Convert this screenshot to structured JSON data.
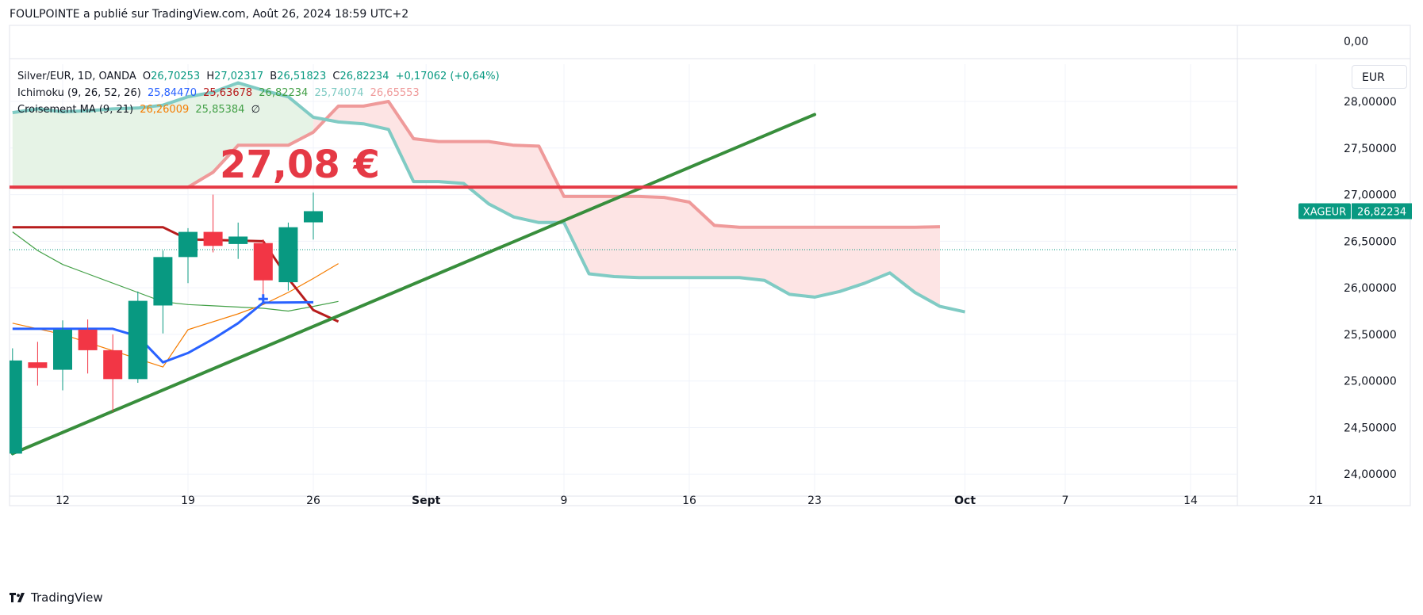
{
  "header": {
    "text": "FOULPOINTE a publié sur TradingView.com, Août 26, 2024 18:59 UTC+2"
  },
  "footer": {
    "brand": "TradingView"
  },
  "legend": {
    "symbol": "Silver/EUR, 1D, OANDA",
    "o_label": "O",
    "o_value": "26,70253",
    "h_label": "H",
    "h_value": "27,02317",
    "b_label": "B",
    "b_value": "26,51823",
    "c_label": "C",
    "c_value": "26,82234",
    "change": "+0,17062 (+0,64%)",
    "ichimoku_label": "Ichimoku (9, 26, 52, 26)",
    "ichimoku_values": [
      "25,84470",
      "25,63678",
      "26,82234",
      "25,74074",
      "26,65553"
    ],
    "ma_label": "Croisement MA (9, 21)",
    "ma_values": [
      "26,26009",
      "25,85384"
    ],
    "ma_extra": "∅"
  },
  "currency_button": "EUR",
  "colors": {
    "up": "#089981",
    "down": "#f23645",
    "tenkan": "#2962ff",
    "kijun": "#b71c1c",
    "span_a": "#ef9a9a",
    "span_b": "#80cbc4",
    "ma_fast": "#f57c00",
    "ma_slow": "#43a047",
    "trendline": "#388e3c",
    "level": "#e53945",
    "cloud_green": "#e6f3e6",
    "cloud_red": "#fde4e4"
  },
  "chart_data": {
    "type": "candlestick",
    "symbol": "XAGEUR",
    "last_price": 26.82234,
    "last_price_label": "26,82234",
    "price_tag_label": "XAGEUR",
    "y_axis": {
      "range": [
        23.9,
        28.4
      ],
      "ticks": [
        0,
        28.0,
        27.5,
        27.0,
        26.5,
        26.0,
        25.5,
        25.0,
        24.5,
        24.0
      ],
      "tick_labels": [
        "0,00",
        "28,00000",
        "27,50000",
        "27,00000",
        "26,50000",
        "26,00000",
        "25,50000",
        "25,00000",
        "24,50000",
        "24,00000"
      ]
    },
    "x_axis": {
      "ticks": [
        {
          "label": "12",
          "date": "2024-08-12"
        },
        {
          "label": "19",
          "date": "2024-08-19"
        },
        {
          "label": "26",
          "date": "2024-08-26"
        },
        {
          "label": "Sept",
          "date": "2024-09-01"
        },
        {
          "label": "9",
          "date": "2024-09-09"
        },
        {
          "label": "16",
          "date": "2024-09-16"
        },
        {
          "label": "23",
          "date": "2024-09-23"
        },
        {
          "label": "Oct",
          "date": "2024-10-01"
        },
        {
          "label": "7",
          "date": "2024-10-07"
        },
        {
          "label": "14",
          "date": "2024-10-14"
        },
        {
          "label": "21",
          "date": "2024-10-21"
        }
      ]
    },
    "candles": [
      {
        "date": "2024-08-08",
        "o": 24.22,
        "h": 25.35,
        "l": 24.2,
        "c": 25.22
      },
      {
        "date": "2024-08-09",
        "o": 25.2,
        "h": 25.42,
        "l": 24.95,
        "c": 25.14
      },
      {
        "date": "2024-08-12",
        "o": 25.12,
        "h": 25.65,
        "l": 24.9,
        "c": 25.55
      },
      {
        "date": "2024-08-13",
        "o": 25.55,
        "h": 25.66,
        "l": 25.08,
        "c": 25.33
      },
      {
        "date": "2024-08-14",
        "o": 25.33,
        "h": 25.5,
        "l": 24.67,
        "c": 25.02
      },
      {
        "date": "2024-08-15",
        "o": 25.02,
        "h": 25.96,
        "l": 24.98,
        "c": 25.86
      },
      {
        "date": "2024-08-16",
        "o": 25.81,
        "h": 26.4,
        "l": 25.51,
        "c": 26.33
      },
      {
        "date": "2024-08-19",
        "o": 26.33,
        "h": 26.64,
        "l": 26.05,
        "c": 26.6
      },
      {
        "date": "2024-08-20",
        "o": 26.6,
        "h": 27.0,
        "l": 26.38,
        "c": 26.45
      },
      {
        "date": "2024-08-21",
        "o": 26.47,
        "h": 26.7,
        "l": 26.31,
        "c": 26.55
      },
      {
        "date": "2024-08-22",
        "o": 26.48,
        "h": 26.52,
        "l": 25.9,
        "c": 26.08
      },
      {
        "date": "2024-08-23",
        "o": 26.06,
        "h": 26.7,
        "l": 25.97,
        "c": 26.65
      },
      {
        "date": "2024-08-26",
        "o": 26.70253,
        "h": 27.02317,
        "l": 26.51823,
        "c": 26.82234
      }
    ],
    "annotation": {
      "text": "27,08 €",
      "level": 27.08
    },
    "trendline": {
      "from": {
        "date": "2024-08-08",
        "value": 24.22
      },
      "to": {
        "date": "2024-09-23",
        "value": 27.86
      }
    },
    "series": [
      {
        "name": "Tenkan",
        "points": [
          [
            "2024-08-08",
            25.56
          ],
          [
            "2024-08-14",
            25.56
          ],
          [
            "2024-08-15",
            25.48
          ],
          [
            "2024-08-16",
            25.2
          ],
          [
            "2024-08-19",
            25.3
          ],
          [
            "2024-08-20",
            25.45
          ],
          [
            "2024-08-21",
            25.62
          ],
          [
            "2024-08-22",
            25.84
          ],
          [
            "2024-08-26",
            25.8447
          ]
        ]
      },
      {
        "name": "Kijun",
        "points": [
          [
            "2024-08-08",
            26.65
          ],
          [
            "2024-08-16",
            26.65
          ],
          [
            "2024-08-19",
            26.52
          ],
          [
            "2024-08-22",
            26.5
          ],
          [
            "2024-08-23",
            26.1
          ],
          [
            "2024-08-26",
            25.76
          ],
          [
            "2024-08-27",
            25.63678
          ]
        ]
      },
      {
        "name": "MA 9",
        "points": [
          [
            "2024-08-08",
            25.62
          ],
          [
            "2024-08-12",
            25.5
          ],
          [
            "2024-08-16",
            25.15
          ],
          [
            "2024-08-19",
            25.55
          ],
          [
            "2024-08-21",
            25.72
          ],
          [
            "2024-08-22",
            25.82
          ],
          [
            "2024-08-23",
            25.95
          ],
          [
            "2024-08-26",
            26.1
          ],
          [
            "2024-08-27",
            26.26009
          ]
        ]
      },
      {
        "name": "MA 21",
        "points": [
          [
            "2024-08-08",
            26.6
          ],
          [
            "2024-08-09",
            26.4
          ],
          [
            "2024-08-12",
            26.25
          ],
          [
            "2024-08-13",
            26.15
          ],
          [
            "2024-08-15",
            25.95
          ],
          [
            "2024-08-16",
            25.85
          ],
          [
            "2024-08-19",
            25.82
          ],
          [
            "2024-08-22",
            25.78
          ],
          [
            "2024-08-23",
            25.75
          ],
          [
            "2024-08-26",
            25.8
          ],
          [
            "2024-08-27",
            25.85384
          ]
        ]
      },
      {
        "name": "Senkou Span A",
        "points": [
          [
            "2024-08-08",
            27.08
          ],
          [
            "2024-08-19",
            27.08
          ],
          [
            "2024-08-20",
            27.24
          ],
          [
            "2024-08-21",
            27.53
          ],
          [
            "2024-08-22",
            27.53
          ],
          [
            "2024-08-23",
            27.53
          ],
          [
            "2024-08-26",
            27.67
          ],
          [
            "2024-08-27",
            27.95
          ],
          [
            "2024-08-28",
            27.95
          ],
          [
            "2024-08-29",
            28.0
          ],
          [
            "2024-08-30",
            27.6
          ],
          [
            "2024-09-02",
            27.57
          ],
          [
            "2024-09-03",
            27.57
          ],
          [
            "2024-09-04",
            27.57
          ],
          [
            "2024-09-05",
            27.53
          ],
          [
            "2024-09-06",
            27.52
          ],
          [
            "2024-09-09",
            26.98
          ],
          [
            "2024-09-10",
            26.98
          ],
          [
            "2024-09-11",
            26.98
          ],
          [
            "2024-09-12",
            26.98
          ],
          [
            "2024-09-13",
            26.97
          ],
          [
            "2024-09-16",
            26.92
          ],
          [
            "2024-09-17",
            26.67
          ],
          [
            "2024-09-18",
            26.65
          ],
          [
            "2024-09-19",
            26.65
          ],
          [
            "2024-09-20",
            26.65
          ],
          [
            "2024-09-23",
            26.65
          ],
          [
            "2024-09-24",
            26.65
          ],
          [
            "2024-09-25",
            26.65
          ],
          [
            "2024-09-26",
            26.65
          ],
          [
            "2024-09-27",
            26.65
          ],
          [
            "2024-09-30",
            26.65553
          ]
        ]
      },
      {
        "name": "Senkou Span B",
        "points": [
          [
            "2024-08-08",
            27.88
          ],
          [
            "2024-08-09",
            27.92
          ],
          [
            "2024-08-12",
            27.89
          ],
          [
            "2024-08-13",
            27.9
          ],
          [
            "2024-08-14",
            27.92
          ],
          [
            "2024-08-15",
            27.93
          ],
          [
            "2024-08-16",
            27.96
          ],
          [
            "2024-08-19",
            28.05
          ],
          [
            "2024-08-20",
            28.1
          ],
          [
            "2024-08-21",
            28.2
          ],
          [
            "2024-08-22",
            28.12
          ],
          [
            "2024-08-23",
            28.05
          ],
          [
            "2024-08-26",
            27.83
          ],
          [
            "2024-08-27",
            27.78
          ],
          [
            "2024-08-28",
            27.76
          ],
          [
            "2024-08-29",
            27.7
          ],
          [
            "2024-08-30",
            27.14
          ],
          [
            "2024-09-02",
            27.14
          ],
          [
            "2024-09-03",
            27.12
          ],
          [
            "2024-09-04",
            26.9
          ],
          [
            "2024-09-05",
            26.76
          ],
          [
            "2024-09-06",
            26.7
          ],
          [
            "2024-09-09",
            26.7
          ],
          [
            "2024-09-10",
            26.15
          ],
          [
            "2024-09-11",
            26.12
          ],
          [
            "2024-09-12",
            26.11
          ],
          [
            "2024-09-13",
            26.11
          ],
          [
            "2024-09-16",
            26.11
          ],
          [
            "2024-09-17",
            26.11
          ],
          [
            "2024-09-18",
            26.11
          ],
          [
            "2024-09-19",
            26.08
          ],
          [
            "2024-09-20",
            25.93
          ],
          [
            "2024-09-23",
            25.9
          ],
          [
            "2024-09-24",
            25.96
          ],
          [
            "2024-09-25",
            26.05
          ],
          [
            "2024-09-26",
            26.16
          ],
          [
            "2024-09-27",
            25.95
          ],
          [
            "2024-09-30",
            25.8
          ],
          [
            "2024-10-01",
            25.74074
          ]
        ]
      }
    ]
  }
}
